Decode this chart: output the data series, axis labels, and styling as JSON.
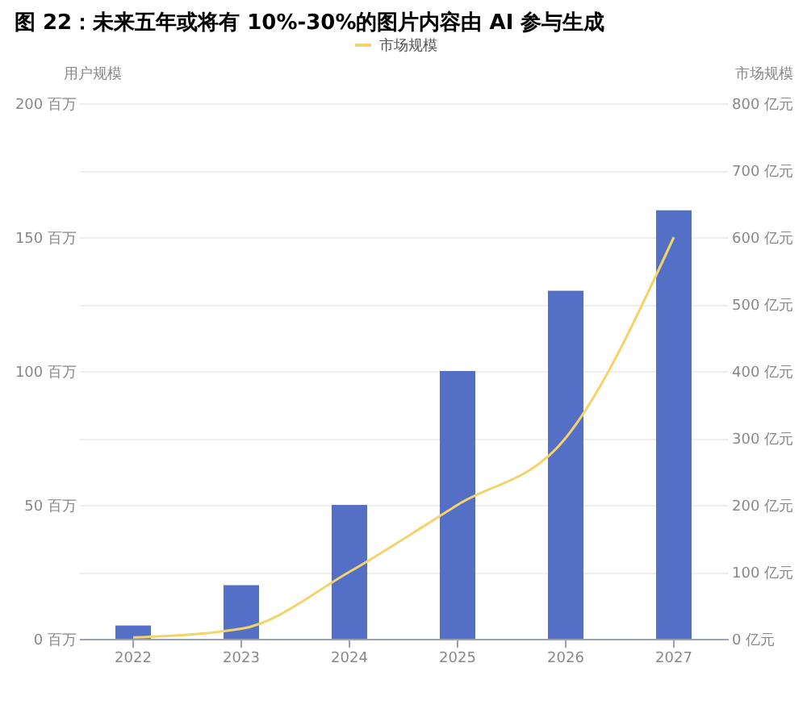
{
  "chart_data": {
    "type": "bar",
    "title": "图 22：未来五年或将有 10%-30%的图片内容由 AI 参与生成",
    "categories": [
      "2022",
      "2023",
      "2024",
      "2025",
      "2026",
      "2027"
    ],
    "series": [
      {
        "color": "#5470c6",
        "values": [
          5,
          20,
          50,
          100,
          130,
          160
        ]
      },
      {
        "type": "line",
        "name": "市场规模",
        "axis": "y2",
        "color": "#f2d46b",
        "values": [
          2,
          15,
          100,
          200,
          300,
          600
        ]
      }
    ],
    "ylabel": "用户规模",
    "y2label": "市场规模",
    "ylim": [
      0,
      200
    ],
    "yticks": [
      {
        "value": 0,
        "label": "0 百万"
      },
      {
        "value": 50,
        "label": "50 百万"
      },
      {
        "value": 100,
        "label": "100 百万"
      },
      {
        "value": 150,
        "label": "150 百万"
      },
      {
        "value": 200,
        "label": "200 百万"
      }
    ],
    "y2lim": [
      0,
      800
    ],
    "y2ticks": [
      {
        "value": 0,
        "label": "0 亿元"
      },
      {
        "value": 100,
        "label": "100 亿元"
      },
      {
        "value": 200,
        "label": "200 亿元"
      },
      {
        "value": 300,
        "label": "300 亿元"
      },
      {
        "value": 400,
        "label": "400 亿元"
      },
      {
        "value": 500,
        "label": "500 亿元"
      },
      {
        "value": 600,
        "label": "600 亿元"
      },
      {
        "value": 700,
        "label": "700 亿元"
      },
      {
        "value": 800,
        "label": "800 亿元"
      }
    ],
    "grid": "y",
    "legend": "top",
    "marker": "none",
    "line_style": "solid"
  }
}
